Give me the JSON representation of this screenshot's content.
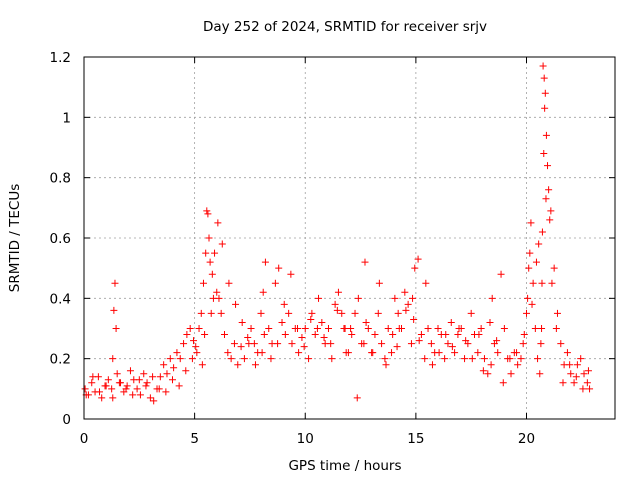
{
  "chart_data": {
    "type": "scatter",
    "title": "Day 252 of 2024, SRMTID for receiver srjv",
    "xlabel": "GPS time / hours",
    "ylabel": "SRMTID / TECUs",
    "xlim": [
      0,
      24
    ],
    "ylim": [
      0,
      1.2
    ],
    "x_ticks": [
      0,
      5,
      10,
      15,
      20
    ],
    "y_ticks": [
      0,
      0.2,
      0.4,
      0.6,
      0.8,
      1,
      1.2
    ],
    "x_tick_labels": [
      "0",
      "5",
      "10",
      "15",
      "20"
    ],
    "y_tick_labels": [
      "0",
      "0.2",
      "0.4",
      "0.6",
      "0.8",
      "1",
      "1.2"
    ],
    "grid": true,
    "marker": "plus",
    "color": "#ff0000",
    "series": [
      {
        "name": "SRMTID",
        "x": [
          0.05,
          0.2,
          0.35,
          0.5,
          0.65,
          0.8,
          0.95,
          1.1,
          1.25,
          1.3,
          1.35,
          1.4,
          1.45,
          1.5,
          1.65,
          1.8,
          1.95,
          2.1,
          2.25,
          2.4,
          2.55,
          2.7,
          2.85,
          3.0,
          3.15,
          3.3,
          3.45,
          3.6,
          3.75,
          3.9,
          4.05,
          4.2,
          4.35,
          4.5,
          4.65,
          4.8,
          4.95,
          5.1,
          5.2,
          5.3,
          5.4,
          5.5,
          5.55,
          5.6,
          5.65,
          5.7,
          5.8,
          5.9,
          6.0,
          6.1,
          6.2,
          6.35,
          6.5,
          6.65,
          6.8,
          6.95,
          7.1,
          7.25,
          7.4,
          7.55,
          7.7,
          7.85,
          8.0,
          8.1,
          8.2,
          8.35,
          8.5,
          8.65,
          8.8,
          8.95,
          9.1,
          9.25,
          9.4,
          9.55,
          9.7,
          9.85,
          10.0,
          10.15,
          10.3,
          10.45,
          10.6,
          10.75,
          10.9,
          11.05,
          11.2,
          11.35,
          11.5,
          11.65,
          11.8,
          11.95,
          12.1,
          12.25,
          12.4,
          12.55,
          12.7,
          12.85,
          13.0,
          13.15,
          13.3,
          13.45,
          13.6,
          13.75,
          13.9,
          14.05,
          14.2,
          14.35,
          14.5,
          14.65,
          14.8,
          14.95,
          15.1,
          15.25,
          15.4,
          15.55,
          15.7,
          15.85,
          16.0,
          16.15,
          16.3,
          16.45,
          16.6,
          16.75,
          16.9,
          17.05,
          17.2,
          17.35,
          17.5,
          17.65,
          17.8,
          17.95,
          18.1,
          18.25,
          18.4,
          18.55,
          18.7,
          18.85,
          19.0,
          19.15,
          19.3,
          19.45,
          19.6,
          19.75,
          19.9,
          20.0,
          20.05,
          20.1,
          20.15,
          20.2,
          20.3,
          20.4,
          20.5,
          20.6,
          20.65,
          20.7,
          20.72,
          20.75,
          20.8,
          20.85,
          20.9,
          20.95,
          21.0,
          21.1,
          21.25,
          21.4,
          21.55,
          21.7,
          21.85,
          22.0,
          22.15,
          22.3,
          22.45,
          22.6,
          22.75,
          22.85,
          0.1,
          0.4,
          0.7,
          1.0,
          1.3,
          1.6,
          1.9,
          2.2,
          2.5,
          2.8,
          3.1,
          3.4,
          3.7,
          4.0,
          4.3,
          4.6,
          4.9,
          5.05,
          5.35,
          5.45,
          5.75,
          5.85,
          6.05,
          6.25,
          6.55,
          6.85,
          7.15,
          7.45,
          7.75,
          8.05,
          8.15,
          8.45,
          8.75,
          9.05,
          9.35,
          9.65,
          9.95,
          10.25,
          10.55,
          10.85,
          11.15,
          11.45,
          11.75,
          11.85,
          12.05,
          12.35,
          12.65,
          12.75,
          13.05,
          13.35,
          13.65,
          13.95,
          14.15,
          14.25,
          14.55,
          14.85,
          14.9,
          15.15,
          15.45,
          15.75,
          16.05,
          16.35,
          16.65,
          16.95,
          17.25,
          17.55,
          17.85,
          18.05,
          18.35,
          18.45,
          18.65,
          18.95,
          19.25,
          19.55,
          19.85,
          20.25,
          20.45,
          20.55,
          20.68,
          20.78,
          20.82,
          20.88,
          21.05,
          21.15,
          21.35,
          21.65,
          21.95,
          22.25,
          22.55,
          22.8
        ],
        "y": [
          0.1,
          0.08,
          0.12,
          0.09,
          0.14,
          0.07,
          0.11,
          0.13,
          0.1,
          0.2,
          0.36,
          0.45,
          0.3,
          0.15,
          0.12,
          0.09,
          0.11,
          0.16,
          0.13,
          0.1,
          0.08,
          0.15,
          0.12,
          0.07,
          0.06,
          0.1,
          0.14,
          0.18,
          0.15,
          0.2,
          0.17,
          0.22,
          0.2,
          0.25,
          0.28,
          0.3,
          0.26,
          0.22,
          0.3,
          0.35,
          0.45,
          0.55,
          0.69,
          0.68,
          0.6,
          0.52,
          0.48,
          0.55,
          0.42,
          0.4,
          0.35,
          0.28,
          0.22,
          0.2,
          0.25,
          0.18,
          0.24,
          0.2,
          0.27,
          0.3,
          0.25,
          0.22,
          0.35,
          0.42,
          0.52,
          0.3,
          0.25,
          0.45,
          0.5,
          0.32,
          0.28,
          0.35,
          0.25,
          0.3,
          0.22,
          0.27,
          0.3,
          0.2,
          0.35,
          0.28,
          0.4,
          0.32,
          0.25,
          0.3,
          0.2,
          0.38,
          0.42,
          0.35,
          0.3,
          0.22,
          0.28,
          0.35,
          0.4,
          0.25,
          0.52,
          0.3,
          0.22,
          0.28,
          0.35,
          0.25,
          0.2,
          0.3,
          0.22,
          0.4,
          0.35,
          0.3,
          0.42,
          0.38,
          0.25,
          0.5,
          0.53,
          0.28,
          0.2,
          0.3,
          0.25,
          0.22,
          0.3,
          0.28,
          0.2,
          0.25,
          0.32,
          0.22,
          0.28,
          0.3,
          0.2,
          0.25,
          0.35,
          0.28,
          0.22,
          0.3,
          0.2,
          0.15,
          0.18,
          0.25,
          0.22,
          0.48,
          0.3,
          0.2,
          0.15,
          0.22,
          0.18,
          0.2,
          0.28,
          0.35,
          0.4,
          0.5,
          0.55,
          0.65,
          0.45,
          0.3,
          0.2,
          0.15,
          0.25,
          0.45,
          0.62,
          1.17,
          1.13,
          1.08,
          0.94,
          0.84,
          0.76,
          0.69,
          0.5,
          0.35,
          0.25,
          0.18,
          0.22,
          0.15,
          0.12,
          0.18,
          0.2,
          0.15,
          0.12,
          0.1,
          0.08,
          0.14,
          0.09,
          0.11,
          0.07,
          0.12,
          0.1,
          0.08,
          0.13,
          0.11,
          0.14,
          0.1,
          0.09,
          0.13,
          0.11,
          0.16,
          0.2,
          0.24,
          0.18,
          0.28,
          0.35,
          0.4,
          0.65,
          0.58,
          0.45,
          0.38,
          0.32,
          0.25,
          0.18,
          0.22,
          0.28,
          0.2,
          0.25,
          0.38,
          0.48,
          0.3,
          0.24,
          0.33,
          0.3,
          0.27,
          0.25,
          0.36,
          0.3,
          0.22,
          0.3,
          0.07,
          0.25,
          0.32,
          0.22,
          0.45,
          0.18,
          0.28,
          0.24,
          0.3,
          0.36,
          0.4,
          0.33,
          0.26,
          0.45,
          0.18,
          0.22,
          0.28,
          0.24,
          0.3,
          0.26,
          0.2,
          0.28,
          0.16,
          0.32,
          0.4,
          0.26,
          0.12,
          0.2,
          0.22,
          0.25,
          0.38,
          0.52,
          0.58,
          0.3,
          0.88,
          1.03,
          0.73,
          0.66,
          0.45,
          0.3,
          0.12,
          0.18,
          0.14,
          0.1,
          0.16
        ]
      }
    ]
  }
}
